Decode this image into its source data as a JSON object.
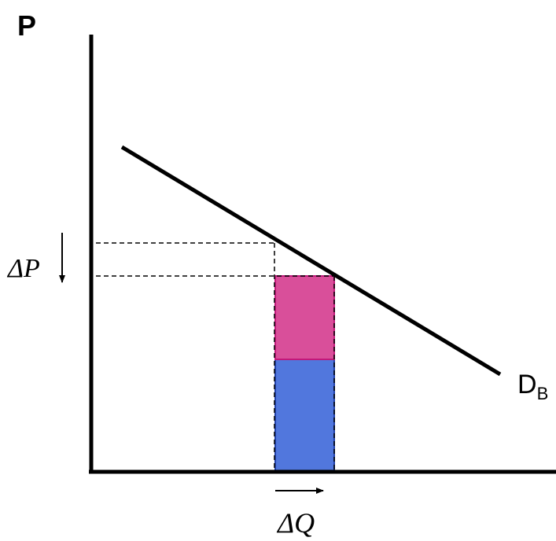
{
  "diagram": {
    "y_axis_label": "P",
    "demand_curve_label": "D",
    "demand_curve_subscript": "B",
    "delta_p_label": "ΔP",
    "delta_q_label": "ΔQ"
  },
  "colors": {
    "axis": "#000000",
    "demand_curve": "#000000",
    "guide_lines": "#000000",
    "upper_rect_fill": "#d94f9a",
    "upper_rect_stroke": "#c2187a",
    "lower_rect_fill": "#5177dd",
    "lower_rect_stroke": "#1f3fa8"
  }
}
